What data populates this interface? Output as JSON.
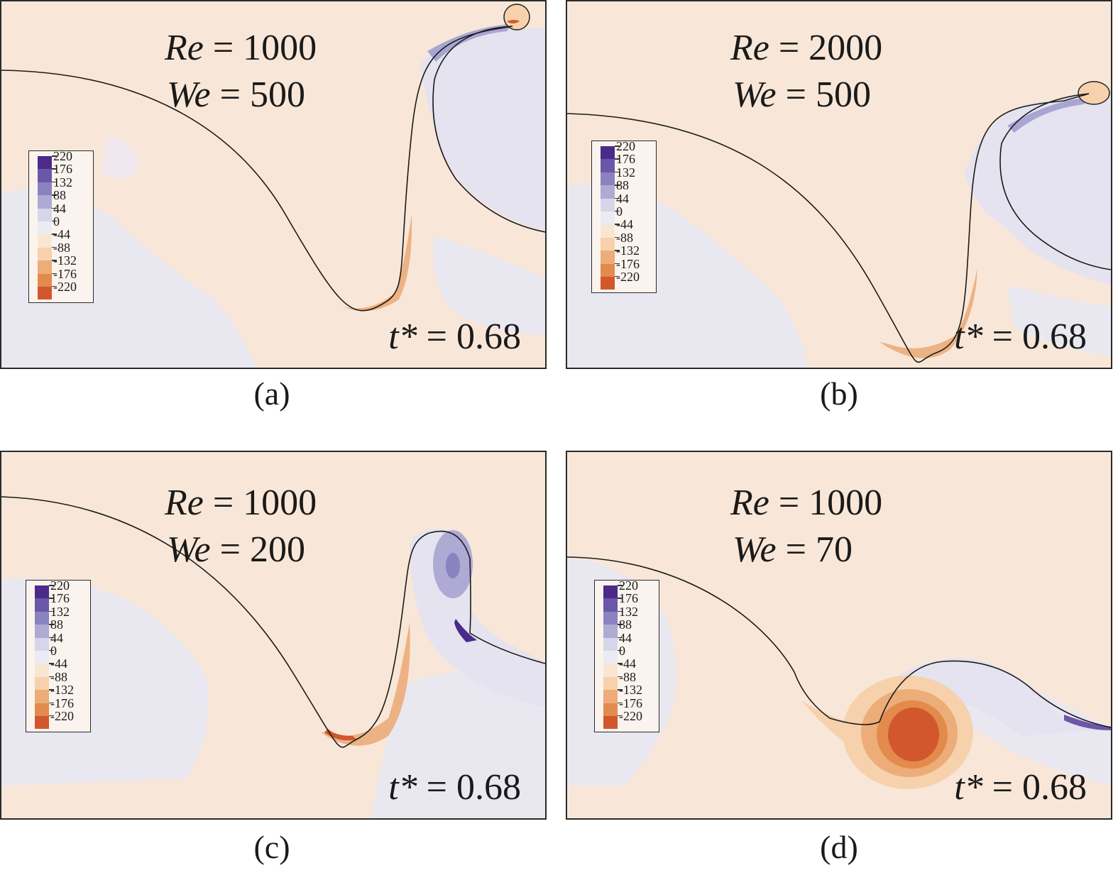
{
  "legend": {
    "levels": [
      "220",
      "176",
      "132",
      "88",
      "44",
      "0",
      "-44",
      "-88",
      "-132",
      "-176",
      "-220"
    ],
    "colors": [
      "#4b2a8a",
      "#6a57a8",
      "#8b82c0",
      "#aeaad4",
      "#d6d6ea",
      "#ecebf3",
      "#f9e6d2",
      "#f6d1ac",
      "#ecad78",
      "#e38a4d",
      "#d2572c"
    ]
  },
  "panels": [
    {
      "caption": "(a)",
      "re_sym": "Re",
      "re_val": " = 1000",
      "we_sym": "We",
      "we_val": " = 500",
      "t_sym": "t*",
      "t_val": " = 0.68"
    },
    {
      "caption": "(b)",
      "re_sym": "Re",
      "re_val": " = 2000",
      "we_sym": "We",
      "we_val": " = 500",
      "t_sym": "t*",
      "t_val": " = 0.68"
    },
    {
      "caption": "(c)",
      "re_sym": "Re",
      "re_val": " = 1000",
      "we_sym": "We",
      "we_val": " = 200",
      "t_sym": "t*",
      "t_val": " = 0.68"
    },
    {
      "caption": "(d)",
      "re_sym": "Re",
      "re_val": " = 1000",
      "we_sym": "We",
      "we_val": " = 70",
      "t_sym": "t*",
      "t_val": " = 0.68"
    }
  ]
}
